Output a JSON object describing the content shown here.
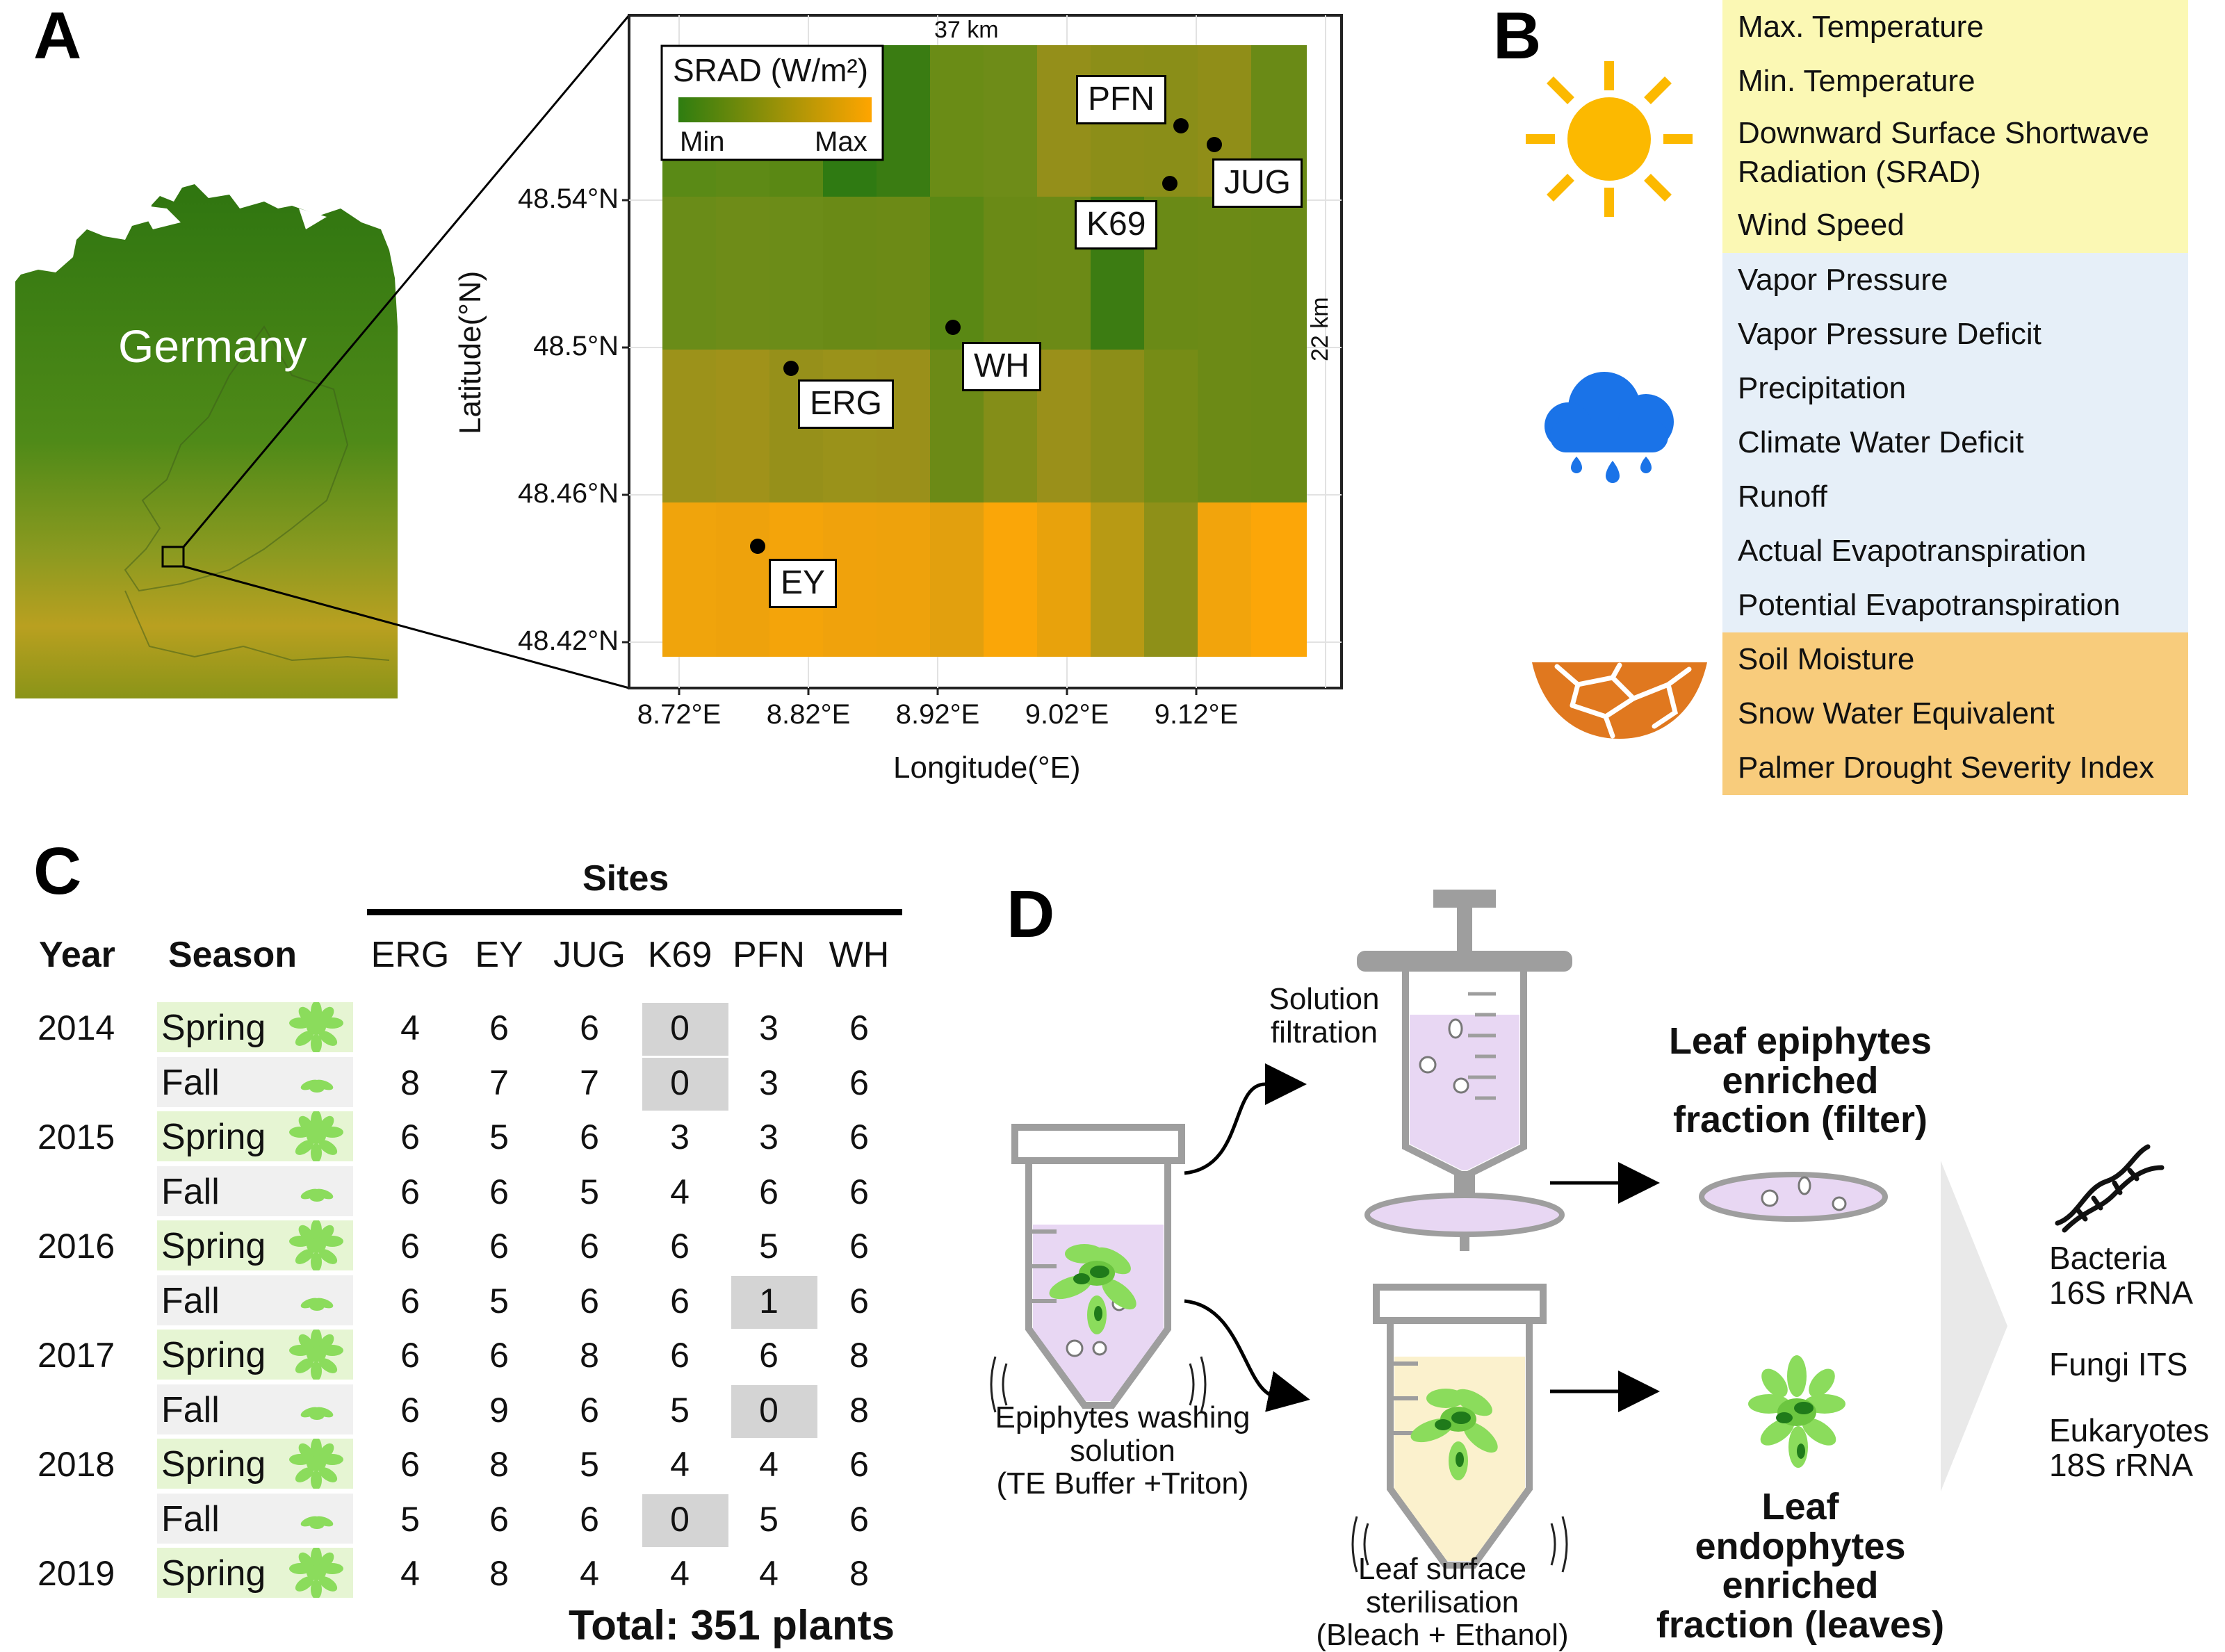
{
  "panels": {
    "a": "A",
    "b": "B",
    "c": "C",
    "d": "D"
  },
  "panel_a": {
    "country_label": "Germany",
    "legend": {
      "title": "SRAD (W/m²)",
      "min_label": "Min",
      "max_label": "Max",
      "min_color": "#2e7d10",
      "max_color": "#ffa500"
    },
    "scale_x": "37 km",
    "scale_y": "22 km",
    "y_axis_title": "Latitude(°N)",
    "x_axis_title": "Longitude(°E)",
    "lat_ticks": [
      "48.54°N",
      "48.5°N",
      "48.46°N",
      "48.42°N"
    ],
    "lon_ticks": [
      "8.72°E",
      "8.82°E",
      "8.92°E",
      "9.02°E",
      "9.12°E"
    ],
    "sites": [
      "PFN",
      "JUG",
      "K69",
      "WH",
      "ERG",
      "EY"
    ]
  },
  "panel_b": {
    "groups": [
      {
        "icon": "sun-icon",
        "color": "#fbf8b4",
        "items": [
          "Max. Temperature",
          "Min. Temperature",
          "Downward Surface Shortwave Radiation (SRAD)",
          "Wind Speed"
        ]
      },
      {
        "icon": "rain-cloud-icon",
        "color": "#e6eff8",
        "items": [
          "Vapor Pressure",
          "Vapor Pressure Deficit",
          "Precipitation",
          "Climate Water Deficit",
          "Runoff",
          "Actual Evapotranspiration",
          "Potential Evapotranspiration"
        ]
      },
      {
        "icon": "dry-soil-icon",
        "color": "#f8cc7c",
        "items": [
          "Soil Moisture",
          "Snow Water Equivalent",
          "Palmer Drought Severity Index"
        ]
      }
    ]
  },
  "panel_c": {
    "sites_header": "Sites",
    "year_header": "Year",
    "season_header": "Season",
    "sites": [
      "ERG",
      "EY",
      "JUG",
      "K69",
      "PFN",
      "WH"
    ],
    "rows": [
      {
        "year": "2014",
        "season": "Spring",
        "values": [
          "4",
          "6",
          "6",
          "0",
          "3",
          "6"
        ]
      },
      {
        "year": "",
        "season": "Fall",
        "values": [
          "8",
          "7",
          "7",
          "0",
          "3",
          "6"
        ]
      },
      {
        "year": "2015",
        "season": "Spring",
        "values": [
          "6",
          "5",
          "6",
          "3",
          "3",
          "6"
        ]
      },
      {
        "year": "",
        "season": "Fall",
        "values": [
          "6",
          "6",
          "5",
          "4",
          "6",
          "6"
        ]
      },
      {
        "year": "2016",
        "season": "Spring",
        "values": [
          "6",
          "6",
          "6",
          "6",
          "5",
          "6"
        ]
      },
      {
        "year": "",
        "season": "Fall",
        "values": [
          "6",
          "5",
          "6",
          "6",
          "1",
          "6"
        ]
      },
      {
        "year": "2017",
        "season": "Spring",
        "values": [
          "6",
          "6",
          "8",
          "6",
          "6",
          "8"
        ]
      },
      {
        "year": "",
        "season": "Fall",
        "values": [
          "6",
          "9",
          "6",
          "5",
          "0",
          "8"
        ]
      },
      {
        "year": "2018",
        "season": "Spring",
        "values": [
          "6",
          "8",
          "5",
          "4",
          "4",
          "6"
        ]
      },
      {
        "year": "",
        "season": "Fall",
        "values": [
          "5",
          "6",
          "6",
          "0",
          "5",
          "6"
        ]
      },
      {
        "year": "2019",
        "season": "Spring",
        "values": [
          "4",
          "8",
          "4",
          "4",
          "4",
          "8"
        ]
      }
    ],
    "total": "Total: 351 plants"
  },
  "panel_d": {
    "washing": [
      "Epiphytes washing",
      "solution",
      "(TE Buffer +Triton)"
    ],
    "filtration": [
      "Solution",
      "filtration"
    ],
    "sterilisation": [
      "Leaf surface",
      "sterilisation",
      "(Bleach + Ethanol)"
    ],
    "epiphytes": [
      "Leaf epiphytes",
      "enriched",
      "fraction (filter)"
    ],
    "endophytes": [
      "Leaf",
      "endophytes",
      "enriched",
      "fraction (leaves)"
    ],
    "seq": [
      "Bacteria",
      "16S rRNA",
      "Fungi ITS",
      "Eukaryotes",
      "18S rRNA"
    ]
  }
}
